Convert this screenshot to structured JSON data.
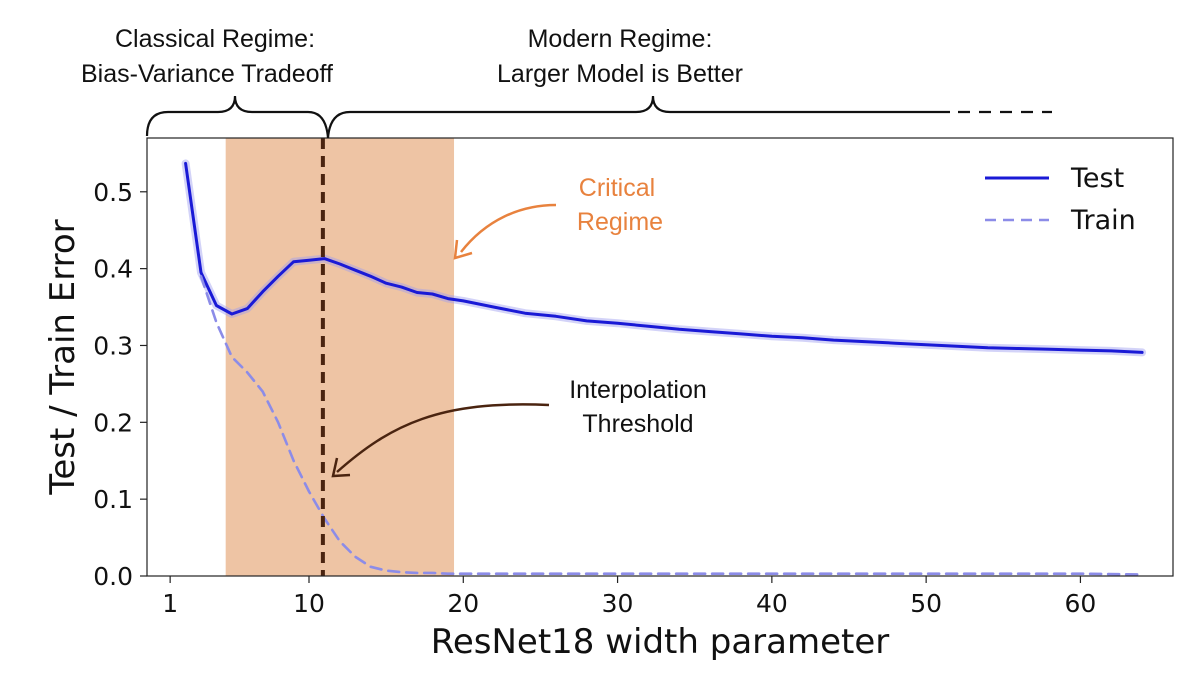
{
  "chart_data": {
    "type": "line",
    "xlabel": "ResNet18 width parameter",
    "ylabel": "Test / Train Error",
    "xlim": [
      -0.5,
      66
    ],
    "ylim": [
      0.0,
      0.57
    ],
    "x_ticks": [
      1,
      10,
      20,
      30,
      40,
      50,
      60
    ],
    "y_ticks": [
      0.0,
      0.1,
      0.2,
      0.3,
      0.4,
      0.5
    ],
    "y_tick_labels": [
      "0.0",
      "0.1",
      "0.2",
      "0.3",
      "0.4",
      "0.5"
    ],
    "legend_position": "top-right",
    "grid": false,
    "colors": {
      "test": "#1a1ad6",
      "train": "#8c8ce8",
      "critical_regime_fill": "#eec4a4",
      "critical_regime_text": "#e8823e",
      "threshold_line": "#4a2410",
      "annotation": "#111111"
    },
    "series": [
      {
        "name": "Test",
        "style": "solid",
        "x": [
          2,
          3,
          4,
          5,
          6,
          7,
          8,
          9,
          10,
          11,
          12,
          13,
          14,
          15,
          16,
          17,
          18,
          19,
          20,
          22,
          24,
          26,
          28,
          30,
          32,
          34,
          36,
          38,
          40,
          42,
          44,
          46,
          48,
          50,
          52,
          54,
          56,
          58,
          60,
          62,
          64
        ],
        "y": [
          0.537,
          0.395,
          0.352,
          0.341,
          0.348,
          0.37,
          0.39,
          0.409,
          0.411,
          0.413,
          0.406,
          0.398,
          0.39,
          0.381,
          0.376,
          0.369,
          0.367,
          0.361,
          0.358,
          0.35,
          0.342,
          0.338,
          0.332,
          0.329,
          0.325,
          0.321,
          0.318,
          0.315,
          0.312,
          0.31,
          0.307,
          0.305,
          0.303,
          0.301,
          0.299,
          0.297,
          0.296,
          0.295,
          0.294,
          0.293,
          0.291
        ]
      },
      {
        "name": "Train",
        "style": "dashed",
        "x": [
          3,
          4,
          5,
          6,
          7,
          8,
          9,
          10,
          11,
          12,
          13,
          14,
          15,
          16,
          17,
          18,
          19,
          20,
          25,
          30,
          40,
          50,
          60,
          64
        ],
        "y": [
          0.39,
          0.33,
          0.285,
          0.265,
          0.24,
          0.2,
          0.15,
          0.11,
          0.075,
          0.045,
          0.025,
          0.012,
          0.007,
          0.005,
          0.004,
          0.004,
          0.003,
          0.003,
          0.003,
          0.003,
          0.003,
          0.003,
          0.003,
          0.002
        ]
      }
    ],
    "critical_regime": {
      "x_start": 4.6,
      "x_end": 19.4
    },
    "interpolation_threshold_x": 10.9,
    "annotations": {
      "critical_regime": [
        "Critical",
        "Regime"
      ],
      "interpolation_threshold": [
        "Interpolation",
        "Threshold"
      ],
      "classical_regime": [
        "Classical Regime:",
        "Bias-Variance Tradeoff"
      ],
      "modern_regime": [
        "Modern Regime:",
        "Larger Model is Better"
      ]
    }
  }
}
